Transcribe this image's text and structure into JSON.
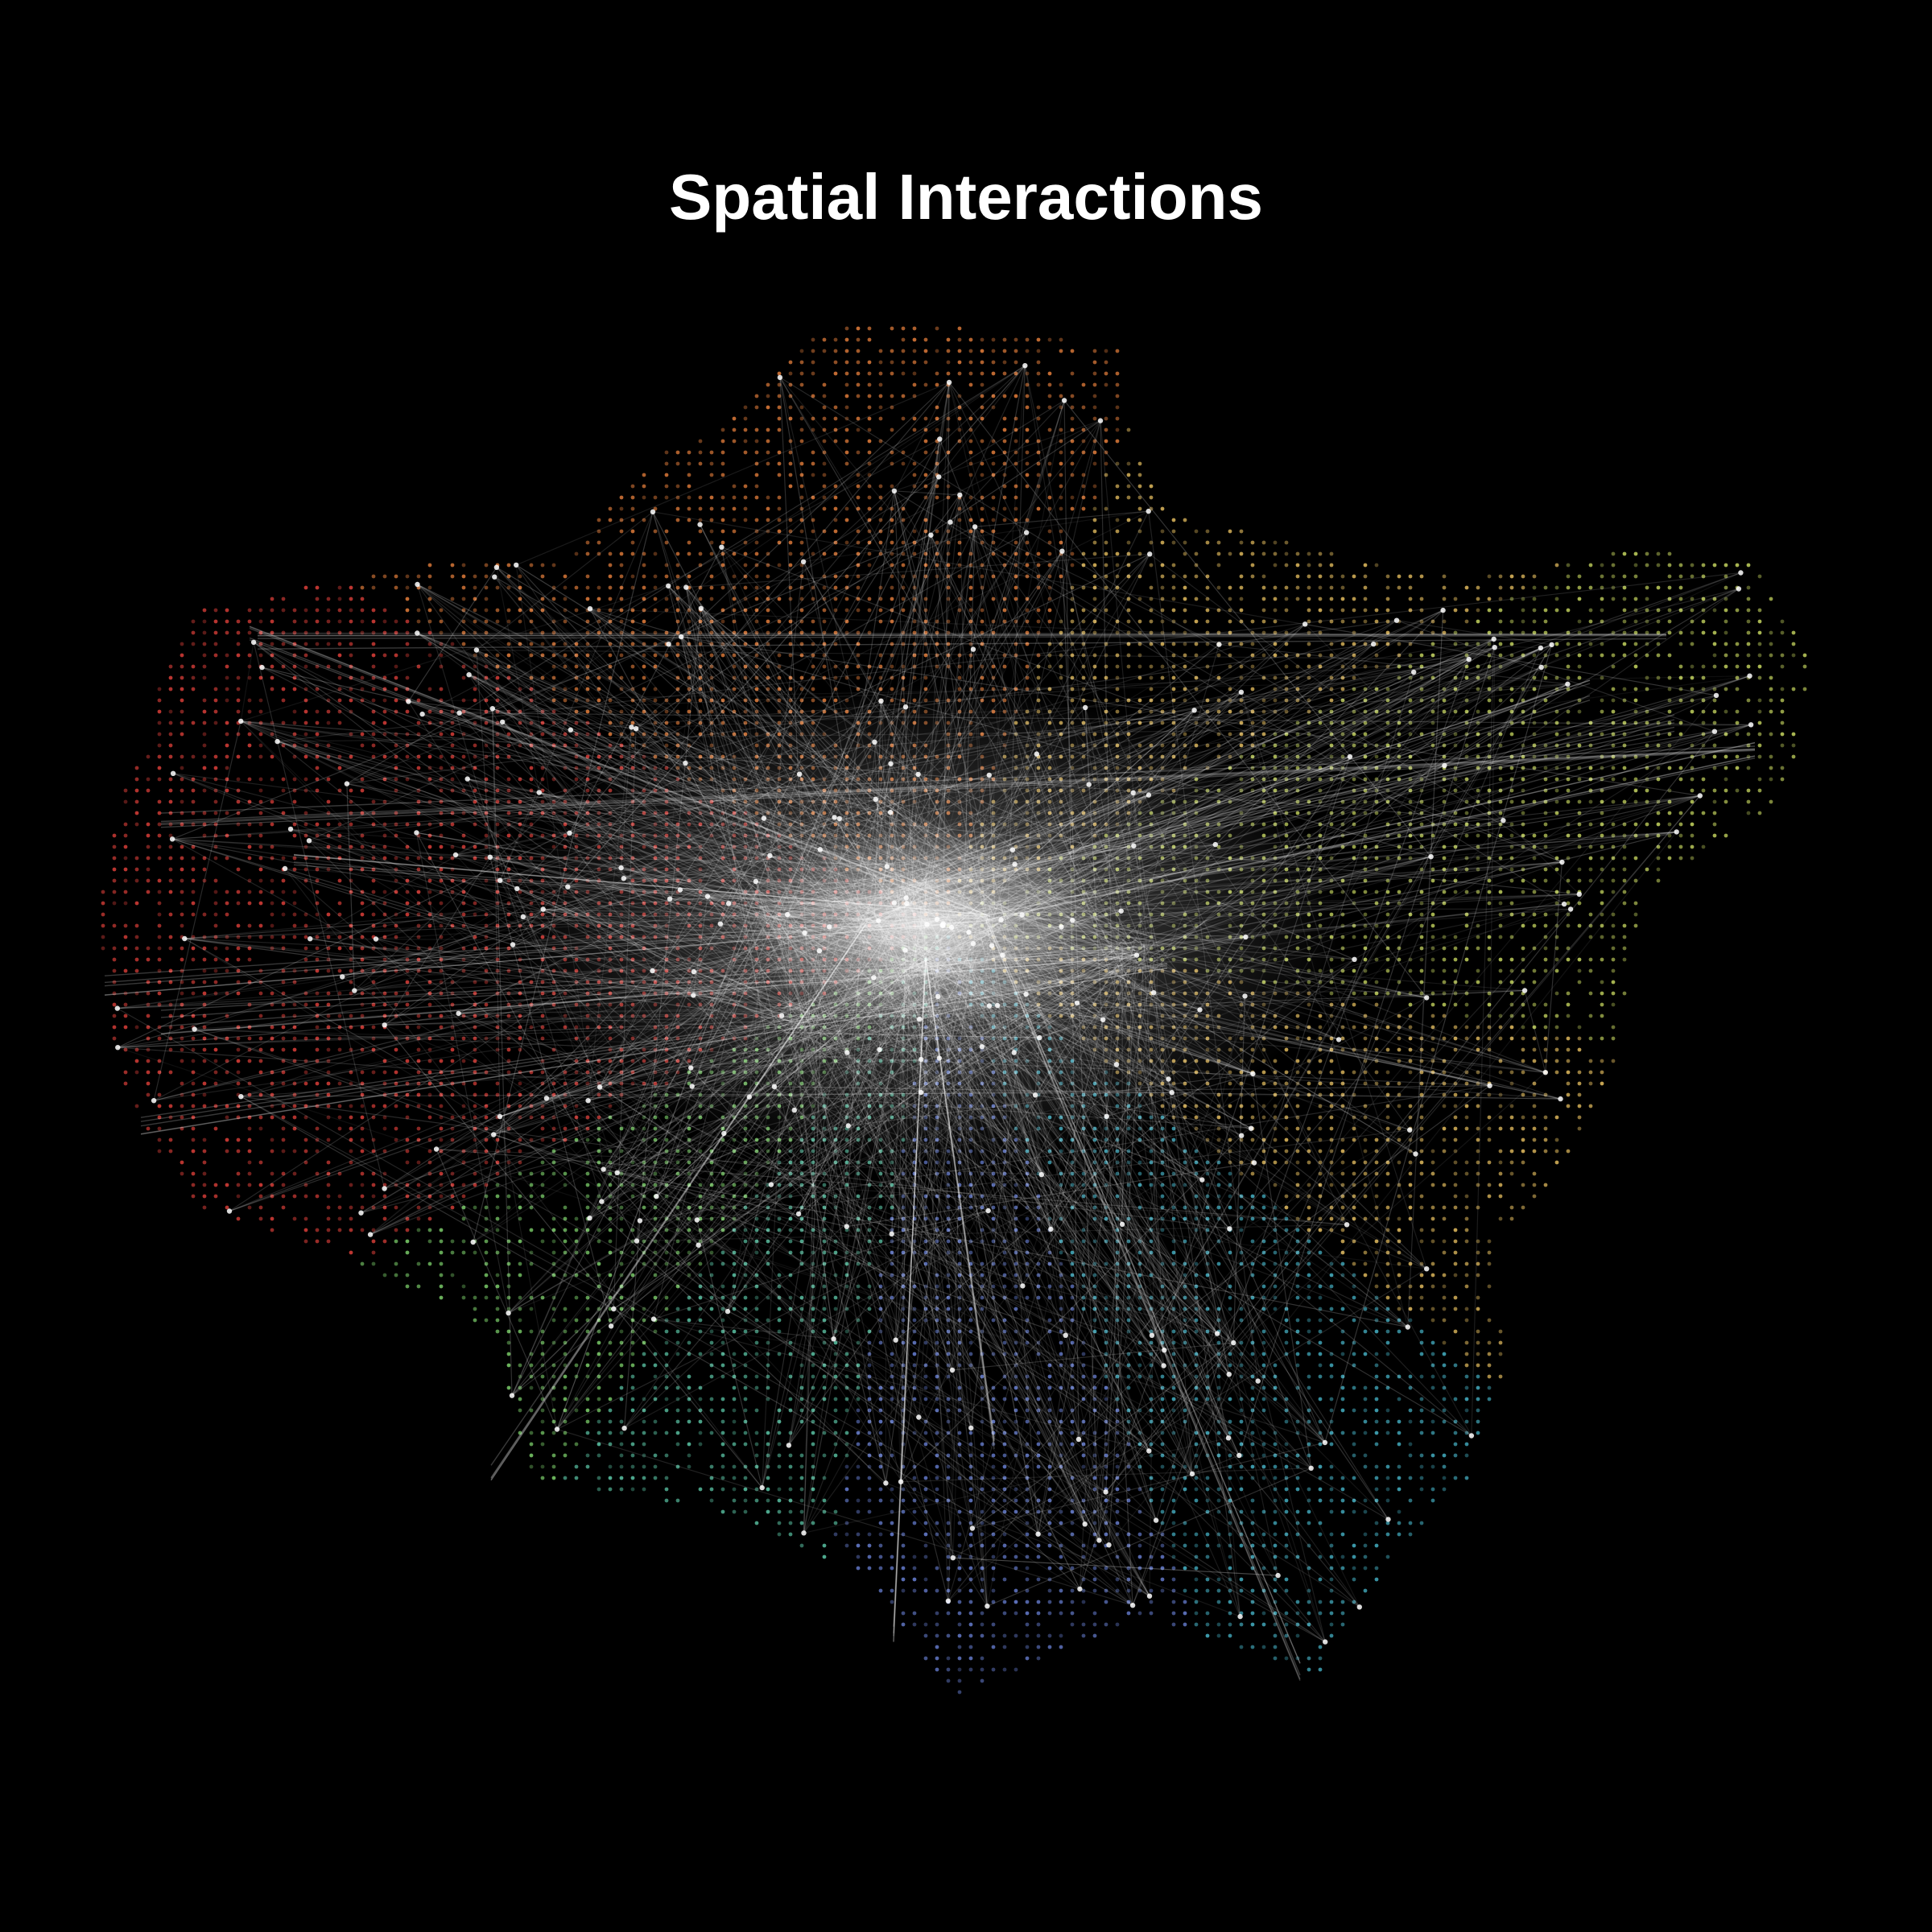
{
  "title": "Spatial Interactions",
  "colors": {
    "background": "#000000",
    "title": "#ffffff",
    "edge": "#ffffff",
    "node_palette": [
      "#e0403a",
      "#e8803c",
      "#e8c060",
      "#c8d860",
      "#7ed36c",
      "#5cc8a8",
      "#46b4c8",
      "#6a82d8",
      "#3a40a8"
    ]
  }
}
